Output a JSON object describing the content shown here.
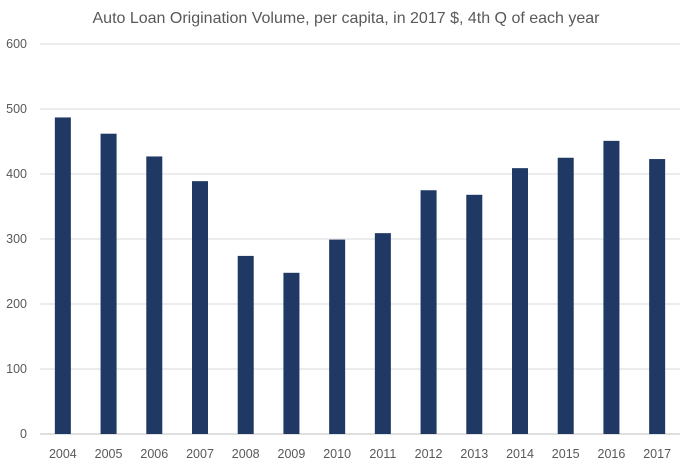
{
  "chart_data": {
    "type": "bar",
    "title": "Auto Loan Origination Volume, per capita, in 2017 $, 4th Q of each year",
    "xlabel": "",
    "ylabel": "",
    "categories": [
      "2004",
      "2005",
      "2006",
      "2007",
      "2008",
      "2009",
      "2010",
      "2011",
      "2012",
      "2013",
      "2014",
      "2015",
      "2016",
      "2017"
    ],
    "values": [
      487,
      462,
      427,
      389,
      274,
      248,
      299,
      309,
      375,
      368,
      409,
      425,
      451,
      423
    ],
    "ylim": [
      0,
      600
    ],
    "yticks": [
      0,
      100,
      200,
      300,
      400,
      500,
      600
    ],
    "grid": true,
    "legend": "none",
    "bar_color": "#1f3864"
  }
}
